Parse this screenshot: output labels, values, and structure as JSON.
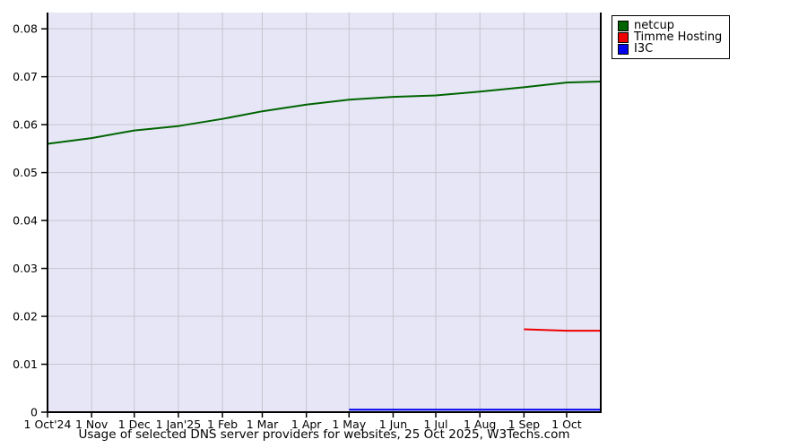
{
  "chart_data": {
    "type": "line",
    "title": "Usage of selected DNS server providers for websites, 25 Oct 2025, W3Techs.com",
    "grid": true,
    "plot_bg": "#e6e6f7",
    "grid_color": "#c6c6cd",
    "axis_color": "#000000",
    "legend_position": "top-right-outside",
    "x_axis": {
      "tick_labels": [
        "1 Oct'24",
        "1 Nov",
        "1 Dec",
        "1 Jan'25",
        "1 Feb",
        "1 Mar",
        "1 Apr",
        "1 May",
        "1 Jun",
        "1 Jul",
        "1 Aug",
        "1 Sep",
        "1 Oct"
      ],
      "tick_days": [
        0,
        31,
        61,
        92,
        123,
        151,
        182,
        212,
        243,
        273,
        304,
        335,
        365
      ],
      "xlim_days": [
        0,
        389
      ]
    },
    "y_axis": {
      "tick_labels": [
        "0",
        "0.01",
        "0.02",
        "0.03",
        "0.04",
        "0.05",
        "0.06",
        "0.07",
        "0.08"
      ],
      "tick_values": [
        0,
        0.01,
        0.02,
        0.03,
        0.04,
        0.05,
        0.06,
        0.07,
        0.08
      ],
      "ylim": [
        0,
        0.0834
      ]
    },
    "series": [
      {
        "name": "netcup",
        "color": "#006400",
        "x_days": [
          0,
          31,
          61,
          92,
          123,
          151,
          182,
          212,
          243,
          273,
          304,
          335,
          365,
          389
        ],
        "values": [
          0.056,
          0.0572,
          0.0588,
          0.0597,
          0.0612,
          0.0628,
          0.0642,
          0.0652,
          0.0658,
          0.0661,
          0.0669,
          0.0678,
          0.0688,
          0.069
        ]
      },
      {
        "name": "Timme Hosting",
        "color": "#ee0000",
        "x_days": [
          335,
          365,
          389
        ],
        "values": [
          0.0173,
          0.017,
          0.017
        ]
      },
      {
        "name": "I3C",
        "color": "#0000ee",
        "x_days": [
          212,
          389
        ],
        "values": [
          0.0005,
          0.0005
        ]
      }
    ]
  }
}
